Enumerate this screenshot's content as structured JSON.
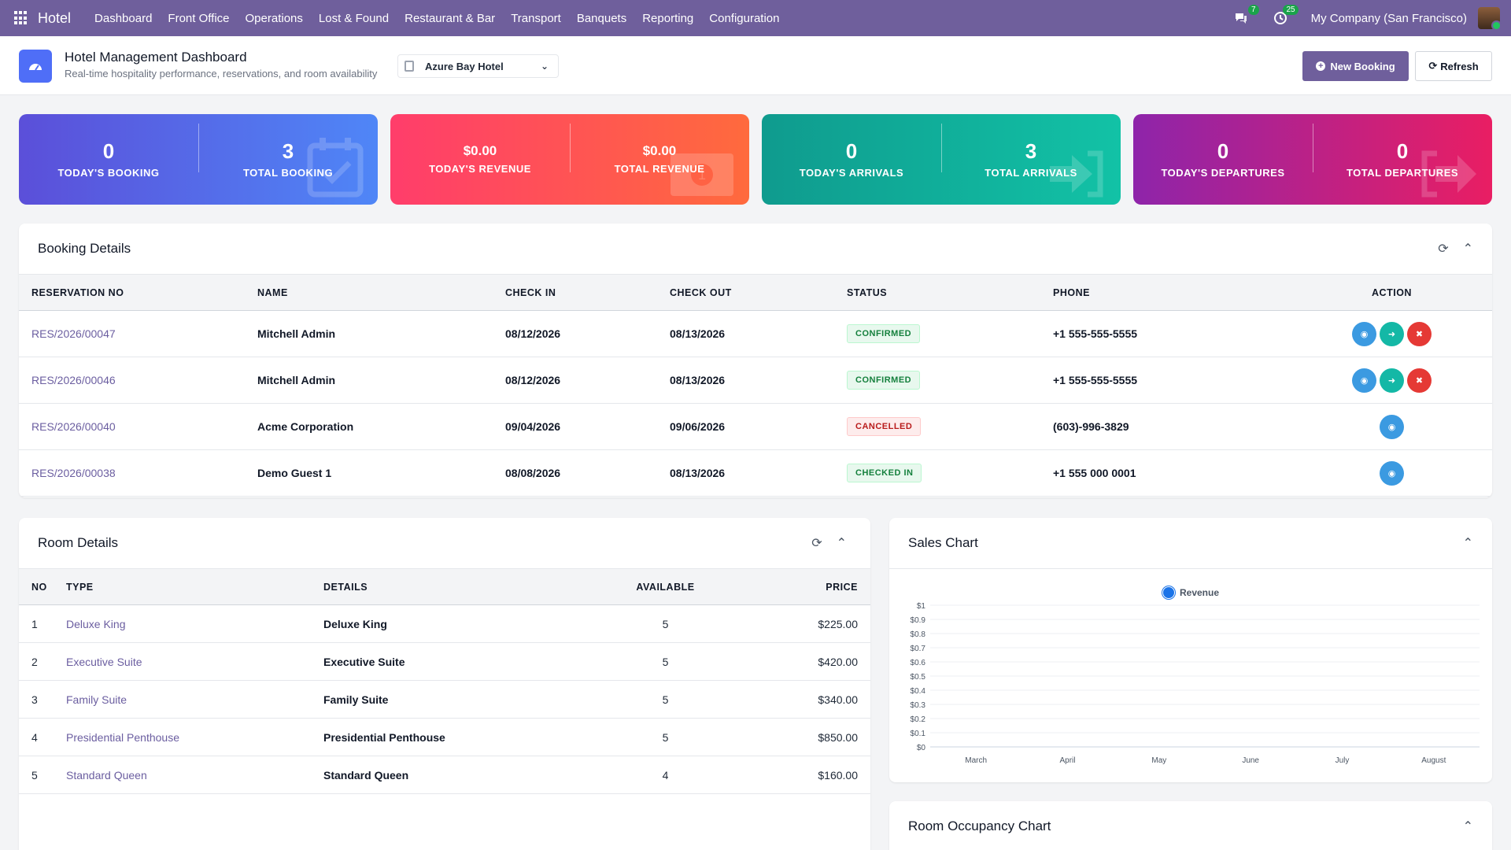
{
  "topbar": {
    "brand": "Hotel",
    "nav": [
      "Dashboard",
      "Front Office",
      "Operations",
      "Lost & Found",
      "Restaurant & Bar",
      "Transport",
      "Banquets",
      "Reporting",
      "Configuration"
    ],
    "messages_badge": "7",
    "activities_badge": "25",
    "company": "My Company (San Francisco)"
  },
  "header": {
    "title": "Hotel Management Dashboard",
    "subtitle": "Real-time hospitality performance, reservations, and room availability",
    "hotel": "Azure Bay Hotel",
    "new_booking": "New Booking",
    "refresh": "Refresh"
  },
  "stats": [
    {
      "left_value": "0",
      "left_label": "TODAY'S BOOKING",
      "right_value": "3",
      "right_label": "TOTAL BOOKING",
      "icon": "calendar-check-icon"
    },
    {
      "left_value": "$0.00",
      "left_label": "TODAY'S REVENUE",
      "right_value": "$0.00",
      "right_label": "TOTAL REVENUE",
      "icon": "money-bill-icon"
    },
    {
      "left_value": "0",
      "left_label": "TODAY'S ARRIVALS",
      "right_value": "3",
      "right_label": "TOTAL ARRIVALS",
      "icon": "sign-in-icon"
    },
    {
      "left_value": "0",
      "left_label": "TODAY'S DEPARTURES",
      "right_value": "0",
      "right_label": "TOTAL DEPARTURES",
      "icon": "sign-out-icon"
    }
  ],
  "colors": {
    "topbar": "#6f5f9c",
    "card1": [
      "#5b4fd9",
      "#4f86f7"
    ],
    "card2": [
      "#ff3d6b",
      "#ff6a3d"
    ],
    "card3": [
      "#0f9b8e",
      "#12c2a6"
    ],
    "card4": [
      "#8e24aa",
      "#e91e63"
    ]
  },
  "booking": {
    "title": "Booking Details",
    "columns": [
      "RESERVATION NO",
      "NAME",
      "CHECK IN",
      "CHECK OUT",
      "STATUS",
      "PHONE",
      "ACTION"
    ],
    "rows": [
      {
        "res": "RES/2026/00047",
        "name": "Mitchell Admin",
        "in": "08/12/2026",
        "out": "08/13/2026",
        "status": "CONFIRMED",
        "phone": "+1 555-555-5555"
      },
      {
        "res": "RES/2026/00046",
        "name": "Mitchell Admin",
        "in": "08/12/2026",
        "out": "08/13/2026",
        "status": "CONFIRMED",
        "phone": "+1 555-555-5555"
      },
      {
        "res": "RES/2026/00040",
        "name": "Acme Corporation",
        "in": "09/04/2026",
        "out": "09/06/2026",
        "status": "CANCELLED",
        "phone": "(603)-996-3829"
      },
      {
        "res": "RES/2026/00038",
        "name": "Demo Guest 1",
        "in": "08/08/2026",
        "out": "08/13/2026",
        "status": "CHECKED IN",
        "phone": "+1 555 000 0001"
      }
    ]
  },
  "rooms": {
    "title": "Room Details",
    "columns": [
      "NO",
      "TYPE",
      "DETAILS",
      "AVAILABLE",
      "PRICE"
    ],
    "rows": [
      {
        "no": "1",
        "type": "Deluxe King",
        "details": "Deluxe King",
        "available": "5",
        "price": "$225.00"
      },
      {
        "no": "2",
        "type": "Executive Suite",
        "details": "Executive Suite",
        "available": "5",
        "price": "$420.00"
      },
      {
        "no": "3",
        "type": "Family Suite",
        "details": "Family Suite",
        "available": "5",
        "price": "$340.00"
      },
      {
        "no": "4",
        "type": "Presidential Penthouse",
        "details": "Presidential Penthouse",
        "available": "5",
        "price": "$850.00"
      },
      {
        "no": "5",
        "type": "Standard Queen",
        "details": "Standard Queen",
        "available": "4",
        "price": "$160.00"
      }
    ]
  },
  "sales_chart": {
    "title": "Sales Chart"
  },
  "occupancy_chart": {
    "title": "Room Occupancy Chart"
  },
  "chart_data": {
    "type": "line",
    "title": "",
    "categories": [
      "March",
      "April",
      "May",
      "June",
      "July",
      "August"
    ],
    "series": [
      {
        "name": "Revenue",
        "values": [
          0,
          0,
          0,
          0,
          0,
          0
        ],
        "color": "#1a73e8"
      }
    ],
    "y_ticks": [
      "$0",
      "$0.1",
      "$0.2",
      "$0.3",
      "$0.4",
      "$0.5",
      "$0.6",
      "$0.7",
      "$0.8",
      "$0.9",
      "$1"
    ],
    "ylim": [
      0,
      1
    ],
    "grid": true,
    "legend": "top-center"
  }
}
